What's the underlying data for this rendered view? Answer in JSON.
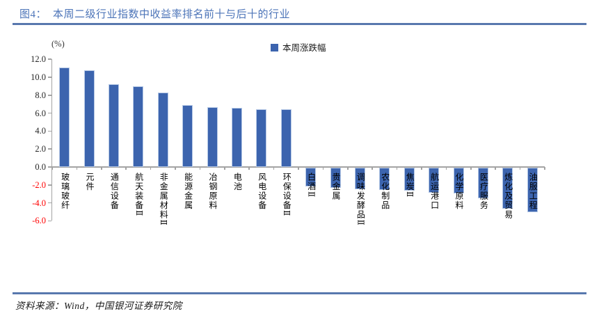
{
  "header": {
    "label": "图4：",
    "title": "本周二级行业指数中收益率排名前十与后十的行业"
  },
  "chart_data": {
    "type": "bar",
    "title": "图4：本周二级行业指数中收益率排名前十与后十的行业",
    "unit_label": "(%)",
    "legend": [
      {
        "label": "本周涨跌幅",
        "color": "#3C64AE"
      }
    ],
    "legend_position": "top-center",
    "grid": false,
    "ylim": [
      -6.0,
      12.0
    ],
    "ytick_step": 2.0,
    "yticks": [
      12,
      10,
      8,
      6,
      4,
      2,
      0,
      -2,
      -4,
      -6
    ],
    "ytick_labels": [
      "12.0",
      "10.0",
      "8.0",
      "6.0",
      "4.0",
      "2.0",
      "0.0",
      "-2.0",
      "-4.0",
      "-6.0"
    ],
    "categories": [
      "玻璃玻纤",
      "元件",
      "通信设备",
      "航天装备Ⅱ",
      "非金属材料Ⅱ",
      "能源金属",
      "冶钢原料",
      "电池",
      "风电设备",
      "环保设备Ⅱ",
      "白酒Ⅱ",
      "贵金属",
      "调味发酵品Ⅱ",
      "农化制品",
      "焦炭Ⅱ",
      "航运港口",
      "化学原料",
      "医疗服务",
      "炼化及贸易",
      "油服工程"
    ],
    "values": [
      11.1,
      10.8,
      9.2,
      9.0,
      8.3,
      6.9,
      6.7,
      6.6,
      6.4,
      6.4,
      -2.1,
      -2.3,
      -2.4,
      -2.5,
      -2.6,
      -2.8,
      -2.9,
      -3.4,
      -4.6,
      -5.0
    ]
  },
  "footer": {
    "source": "资料来源：Wind，中国银河证券研究院"
  },
  "colors": {
    "bar_fill": "#3C64AE",
    "bar_border": "#B6C9E6",
    "axis": "#A3A3A3",
    "tick_label": "#262626",
    "negative_tick_label": "#FF0000",
    "title_text": "#4C74B8",
    "rule": "#5878AE",
    "footer_text": "#1A1A1A"
  }
}
